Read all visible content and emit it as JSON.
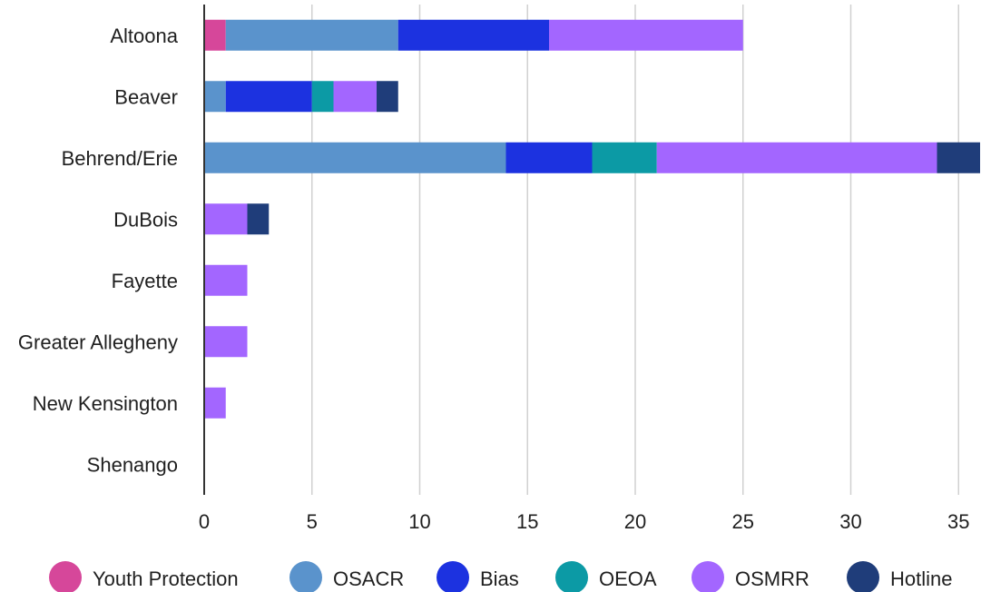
{
  "chart_data": {
    "type": "bar",
    "orientation": "horizontal",
    "stacked": true,
    "categories": [
      "Altoona",
      "Beaver",
      "Behrend/Erie",
      "DuBois",
      "Fayette",
      "Greater Allegheny",
      "New Kensington",
      "Shenango"
    ],
    "series": [
      {
        "name": "Youth Protection",
        "color": "#d6479a",
        "values": [
          1,
          0,
          0,
          0,
          0,
          0,
          0,
          0
        ]
      },
      {
        "name": "OSACR",
        "color": "#5a93cc",
        "values": [
          8,
          1,
          14,
          0,
          0,
          0,
          0,
          0
        ]
      },
      {
        "name": "Bias",
        "color": "#1c32e0",
        "values": [
          7,
          4,
          4,
          0,
          0,
          0,
          0,
          0
        ]
      },
      {
        "name": "OEOA",
        "color": "#0c9aa5",
        "values": [
          0,
          1,
          3,
          0,
          0,
          0,
          0,
          0
        ]
      },
      {
        "name": "OSMRR",
        "color": "#a366ff",
        "values": [
          9,
          2,
          13,
          2,
          2,
          2,
          1,
          0
        ]
      },
      {
        "name": "Hotline",
        "color": "#1f3d7a",
        "values": [
          0,
          1,
          2,
          1,
          0,
          0,
          0,
          0
        ]
      }
    ],
    "xticks": [
      0,
      5,
      10,
      15,
      20,
      25,
      30,
      35
    ],
    "xlim": [
      0,
      36
    ],
    "grid": "vertical",
    "legend": "bottom",
    "title": "",
    "xlabel": "",
    "ylabel": ""
  }
}
